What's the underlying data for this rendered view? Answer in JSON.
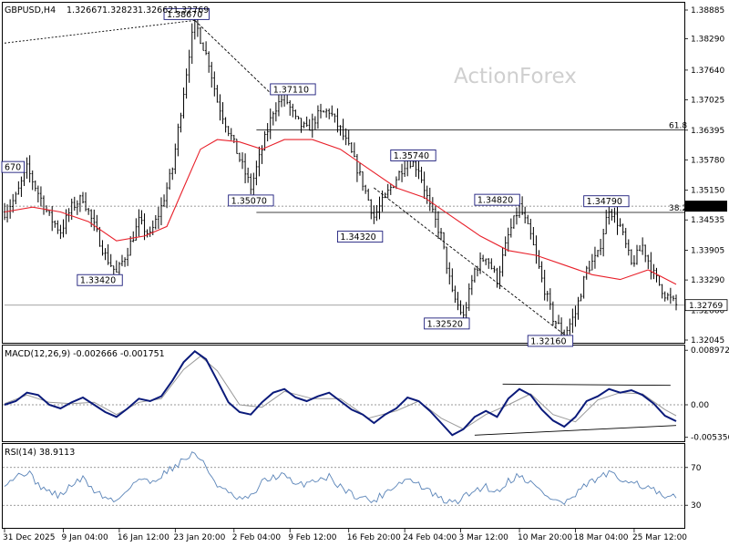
{
  "chart_data": {
    "type": "candlestick",
    "header": {
      "symbol": "GBPUSD,H4",
      "open": "1.32667",
      "high": "1.32823",
      "low": "1.32662",
      "close": "1.32769"
    },
    "watermark": "ActionForex",
    "price_axis": {
      "ticks": [
        "1.38885",
        "1.38290",
        "1.37640",
        "1.37025",
        "1.36395",
        "1.35780",
        "1.35150",
        "1.34535",
        "1.33905",
        "1.33290",
        "1.32660",
        "1.32045"
      ],
      "current_price_label": "1.32769",
      "hline_label": "1.34820"
    },
    "fib_levels": [
      {
        "label": "61.8",
        "price": 1.364
      },
      {
        "label": "38.2",
        "price": 1.3469
      }
    ],
    "key_levels": [
      {
        "label": "1.38670",
        "price": 1.3867
      },
      {
        "label": "1.37110",
        "price": 1.3711
      },
      {
        "label": "1.35740",
        "price": 1.3574
      },
      {
        "label": "1.35070",
        "price": 1.3507
      },
      {
        "label": "1.34820",
        "price": 1.3482
      },
      {
        "label": "1.34790",
        "price": 1.3479
      },
      {
        "label": "1.34320",
        "price": 1.3432
      },
      {
        "label": "1.33420",
        "price": 1.3342
      },
      {
        "label": "1.32520",
        "price": 1.3252
      },
      {
        "label": "1.32160",
        "price": 1.3216
      },
      {
        "label": "670",
        "price": 1.3567
      }
    ],
    "price_path": [
      [
        0,
        1.347
      ],
      [
        4,
        1.35
      ],
      [
        8,
        1.356
      ],
      [
        12,
        1.351
      ],
      [
        16,
        1.346
      ],
      [
        20,
        1.343
      ],
      [
        24,
        1.348
      ],
      [
        28,
        1.35
      ],
      [
        32,
        1.344
      ],
      [
        36,
        1.338
      ],
      [
        40,
        1.3342
      ],
      [
        44,
        1.339
      ],
      [
        48,
        1.345
      ],
      [
        52,
        1.342
      ],
      [
        56,
        1.348
      ],
      [
        60,
        1.356
      ],
      [
        64,
        1.372
      ],
      [
        66,
        1.38
      ],
      [
        68,
        1.3867
      ],
      [
        70,
        1.383
      ],
      [
        73,
        1.378
      ],
      [
        76,
        1.37
      ],
      [
        80,
        1.364
      ],
      [
        84,
        1.358
      ],
      [
        88,
        1.352
      ],
      [
        92,
        1.36
      ],
      [
        96,
        1.368
      ],
      [
        100,
        1.3711
      ],
      [
        104,
        1.366
      ],
      [
        108,
        1.364
      ],
      [
        112,
        1.367
      ],
      [
        116,
        1.368
      ],
      [
        120,
        1.364
      ],
      [
        124,
        1.359
      ],
      [
        128,
        1.353
      ],
      [
        132,
        1.346
      ],
      [
        136,
        1.35
      ],
      [
        140,
        1.354
      ],
      [
        144,
        1.358
      ],
      [
        148,
        1.356
      ],
      [
        152,
        1.348
      ],
      [
        156,
        1.342
      ],
      [
        160,
        1.33
      ],
      [
        164,
        1.3252
      ],
      [
        168,
        1.335
      ],
      [
        172,
        1.338
      ],
      [
        176,
        1.333
      ],
      [
        180,
        1.342
      ],
      [
        184,
        1.3482
      ],
      [
        188,
        1.342
      ],
      [
        192,
        1.333
      ],
      [
        196,
        1.325
      ],
      [
        200,
        1.3216
      ],
      [
        204,
        1.326
      ],
      [
        208,
        1.335
      ],
      [
        212,
        1.338
      ],
      [
        216,
        1.3479
      ],
      [
        220,
        1.344
      ],
      [
        224,
        1.336
      ],
      [
        228,
        1.34
      ],
      [
        232,
        1.334
      ],
      [
        236,
        1.33
      ],
      [
        240,
        1.3277
      ]
    ],
    "ma_path": [
      [
        0,
        1.347
      ],
      [
        10,
        1.348
      ],
      [
        20,
        1.347
      ],
      [
        30,
        1.345
      ],
      [
        40,
        1.341
      ],
      [
        50,
        1.342
      ],
      [
        58,
        1.344
      ],
      [
        64,
        1.352
      ],
      [
        70,
        1.36
      ],
      [
        76,
        1.362
      ],
      [
        84,
        1.3615
      ],
      [
        92,
        1.36
      ],
      [
        100,
        1.362
      ],
      [
        110,
        1.362
      ],
      [
        120,
        1.36
      ],
      [
        130,
        1.356
      ],
      [
        140,
        1.352
      ],
      [
        150,
        1.35
      ],
      [
        160,
        1.346
      ],
      [
        170,
        1.342
      ],
      [
        180,
        1.339
      ],
      [
        190,
        1.338
      ],
      [
        200,
        1.336
      ],
      [
        210,
        1.334
      ],
      [
        220,
        1.333
      ],
      [
        230,
        1.335
      ],
      [
        240,
        1.332
      ]
    ],
    "top_dotted_line": {
      "from": [
        0,
        1.382
      ],
      "to": [
        68,
        1.3867
      ]
    },
    "channel_lines": [
      {
        "from": [
          68,
          1.3867
        ],
        "to": [
          96,
          1.3711
        ]
      },
      {
        "from": [
          132,
          1.352
        ],
        "to": [
          200,
          1.3216
        ]
      }
    ],
    "macd": {
      "label": "MACD(12,26,9) -0.002666 -0.001751",
      "ticks": [
        "0.008972",
        "0.00",
        "-0.005356"
      ],
      "ylim": [
        -0.0054,
        0.009
      ],
      "macd_path": [
        [
          0,
          0.0
        ],
        [
          4,
          0.0006
        ],
        [
          8,
          0.002
        ],
        [
          12,
          0.0016
        ],
        [
          16,
          0.0
        ],
        [
          20,
          -0.0006
        ],
        [
          24,
          0.0004
        ],
        [
          28,
          0.0012
        ],
        [
          32,
          0.0
        ],
        [
          36,
          -0.0012
        ],
        [
          40,
          -0.002
        ],
        [
          44,
          -0.0006
        ],
        [
          48,
          0.001
        ],
        [
          52,
          0.0006
        ],
        [
          56,
          0.0014
        ],
        [
          60,
          0.004
        ],
        [
          64,
          0.007
        ],
        [
          68,
          0.0088
        ],
        [
          72,
          0.0075
        ],
        [
          76,
          0.004
        ],
        [
          80,
          0.0004
        ],
        [
          84,
          -0.0012
        ],
        [
          88,
          -0.0016
        ],
        [
          92,
          0.0004
        ],
        [
          96,
          0.002
        ],
        [
          100,
          0.0026
        ],
        [
          104,
          0.0012
        ],
        [
          108,
          0.0006
        ],
        [
          112,
          0.0014
        ],
        [
          116,
          0.002
        ],
        [
          120,
          0.0006
        ],
        [
          124,
          -0.0008
        ],
        [
          128,
          -0.0016
        ],
        [
          132,
          -0.003
        ],
        [
          136,
          -0.0016
        ],
        [
          140,
          -0.0006
        ],
        [
          144,
          0.0012
        ],
        [
          148,
          0.0006
        ],
        [
          152,
          -0.001
        ],
        [
          156,
          -0.003
        ],
        [
          160,
          -0.005
        ],
        [
          164,
          -0.004
        ],
        [
          168,
          -0.002
        ],
        [
          172,
          -0.001
        ],
        [
          176,
          -0.002
        ],
        [
          180,
          0.001
        ],
        [
          184,
          0.0026
        ],
        [
          188,
          0.0016
        ],
        [
          192,
          -0.0008
        ],
        [
          196,
          -0.0026
        ],
        [
          200,
          -0.0036
        ],
        [
          204,
          -0.002
        ],
        [
          208,
          0.0006
        ],
        [
          212,
          0.0014
        ],
        [
          216,
          0.0026
        ],
        [
          220,
          0.002
        ],
        [
          224,
          0.0024
        ],
        [
          228,
          0.0016
        ],
        [
          232,
          0.0002
        ],
        [
          236,
          -0.0018
        ],
        [
          240,
          -0.0027
        ]
      ],
      "signal_path": [
        [
          0,
          0.0002
        ],
        [
          8,
          0.0016
        ],
        [
          16,
          0.0004
        ],
        [
          24,
          0.0002
        ],
        [
          32,
          0.0004
        ],
        [
          40,
          -0.0016
        ],
        [
          48,
          0.0004
        ],
        [
          56,
          0.001
        ],
        [
          64,
          0.0058
        ],
        [
          70,
          0.008
        ],
        [
          76,
          0.0056
        ],
        [
          84,
          0.0
        ],
        [
          92,
          -0.0004
        ],
        [
          100,
          0.0022
        ],
        [
          110,
          0.001
        ],
        [
          120,
          0.001
        ],
        [
          130,
          -0.0022
        ],
        [
          140,
          -0.001
        ],
        [
          148,
          0.0006
        ],
        [
          156,
          -0.0022
        ],
        [
          164,
          -0.004
        ],
        [
          172,
          -0.0016
        ],
        [
          180,
          0.0
        ],
        [
          188,
          0.0018
        ],
        [
          196,
          -0.0016
        ],
        [
          204,
          -0.0028
        ],
        [
          212,
          0.0008
        ],
        [
          220,
          0.002
        ],
        [
          228,
          0.0018
        ],
        [
          236,
          -0.0008
        ],
        [
          240,
          -0.0018
        ]
      ],
      "trendlines": [
        {
          "from": [
            178,
            0.0034
          ],
          "to": [
            238,
            0.0032
          ]
        },
        {
          "from": [
            168,
            -0.005
          ],
          "to": [
            240,
            -0.0034
          ]
        }
      ]
    },
    "rsi": {
      "label": "RSI(14) 38.9113",
      "ticks": [
        "70",
        "30"
      ],
      "ylim": [
        8,
        92
      ],
      "levels": [
        70,
        30
      ],
      "path": [
        [
          0,
          54
        ],
        [
          4,
          60
        ],
        [
          8,
          66
        ],
        [
          12,
          52
        ],
        [
          16,
          44
        ],
        [
          20,
          40
        ],
        [
          24,
          52
        ],
        [
          28,
          58
        ],
        [
          32,
          46
        ],
        [
          36,
          38
        ],
        [
          40,
          34
        ],
        [
          44,
          48
        ],
        [
          48,
          58
        ],
        [
          52,
          54
        ],
        [
          56,
          62
        ],
        [
          60,
          70
        ],
        [
          64,
          78
        ],
        [
          68,
          86
        ],
        [
          72,
          70
        ],
        [
          76,
          52
        ],
        [
          80,
          42
        ],
        [
          84,
          36
        ],
        [
          88,
          38
        ],
        [
          92,
          54
        ],
        [
          96,
          60
        ],
        [
          100,
          62
        ],
        [
          104,
          50
        ],
        [
          108,
          54
        ],
        [
          112,
          58
        ],
        [
          116,
          60
        ],
        [
          120,
          50
        ],
        [
          124,
          42
        ],
        [
          128,
          38
        ],
        [
          132,
          34
        ],
        [
          136,
          44
        ],
        [
          140,
          52
        ],
        [
          144,
          58
        ],
        [
          148,
          52
        ],
        [
          152,
          44
        ],
        [
          156,
          36
        ],
        [
          160,
          32
        ],
        [
          164,
          38
        ],
        [
          168,
          46
        ],
        [
          172,
          50
        ],
        [
          176,
          44
        ],
        [
          180,
          56
        ],
        [
          184,
          62
        ],
        [
          188,
          54
        ],
        [
          192,
          44
        ],
        [
          196,
          36
        ],
        [
          200,
          32
        ],
        [
          204,
          40
        ],
        [
          208,
          52
        ],
        [
          212,
          58
        ],
        [
          216,
          64
        ],
        [
          220,
          56
        ],
        [
          224,
          58
        ],
        [
          228,
          50
        ],
        [
          232,
          46
        ],
        [
          236,
          36
        ],
        [
          240,
          39
        ]
      ]
    },
    "x_axis": {
      "ticks": [
        {
          "label": "31 Dec 2025",
          "i": 0
        },
        {
          "label": "9 Jan 04:00",
          "i": 21
        },
        {
          "label": "16 Jan 12:00",
          "i": 41
        },
        {
          "label": "23 Jan 20:00",
          "i": 61
        },
        {
          "label": "2 Feb 04:00",
          "i": 82
        },
        {
          "label": "9 Feb 12:00",
          "i": 102
        },
        {
          "label": "16 Feb 20:00",
          "i": 123
        },
        {
          "label": "24 Feb 04:00",
          "i": 143
        },
        {
          "label": "3 Mar 12:00",
          "i": 163
        },
        {
          "label": "10 Mar 20:00",
          "i": 184
        },
        {
          "label": "18 Mar 04:00",
          "i": 204
        },
        {
          "label": "25 Mar 12:00",
          "i": 225
        }
      ]
    },
    "colors": {
      "bars": "#000000",
      "ma": "#e8202a",
      "macd_line": "#0a1a7a",
      "signal_line": "#9a9a9a",
      "grid_dotted": "#7a7a7a",
      "watermark": "#cfcfcf"
    }
  }
}
